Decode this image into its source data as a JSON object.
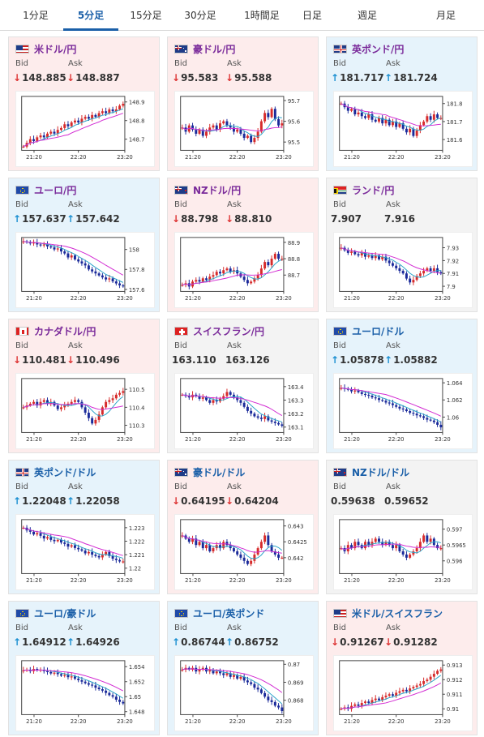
{
  "tabs": [
    {
      "label": "1分足",
      "active": false
    },
    {
      "label": "5分足",
      "active": true
    },
    {
      "label": "15分足",
      "active": false
    },
    {
      "label": "30分足",
      "active": false
    },
    {
      "label": "1時間足",
      "active": false
    },
    {
      "label": "日足",
      "active": false
    },
    {
      "label": "週足",
      "active": false
    },
    {
      "label": "月足",
      "active": false
    }
  ],
  "labels": {
    "bid": "Bid",
    "ask": "Ask"
  },
  "x_ticks": [
    "21:20",
    "22:20",
    "23:20"
  ],
  "cards": [
    {
      "pair": "米ドル/円",
      "flag": "us-flag-icon",
      "trend": "down",
      "bid": "148.885",
      "ask": "148.887",
      "yticks": [
        "148.9",
        "148.8",
        "148.7"
      ],
      "ylim": [
        148.64,
        148.93
      ],
      "series": [
        148.66,
        148.68,
        148.7,
        148.69,
        148.71,
        148.72,
        148.71,
        148.73,
        148.74,
        148.73,
        148.75,
        148.76,
        148.78,
        148.77,
        148.79,
        148.8,
        148.79,
        148.81,
        148.82,
        148.81,
        148.83,
        148.82,
        148.84,
        148.85,
        148.84,
        148.86,
        148.85,
        148.86,
        148.88,
        148.89
      ]
    },
    {
      "pair": "豪ドル/円",
      "flag": "au-flag-icon",
      "trend": "down",
      "bid": "95.583",
      "ask": "95.588",
      "yticks": [
        "95.7",
        "95.6",
        "95.5"
      ],
      "ylim": [
        95.46,
        95.72
      ],
      "series": [
        95.57,
        95.55,
        95.58,
        95.56,
        95.54,
        95.56,
        95.53,
        95.55,
        95.57,
        95.58,
        95.56,
        95.59,
        95.6,
        95.58,
        95.57,
        95.55,
        95.56,
        95.54,
        95.52,
        95.53,
        95.5,
        95.52,
        95.55,
        95.6,
        95.64,
        95.62,
        95.66,
        95.61,
        95.58,
        95.59
      ]
    },
    {
      "pair": "英ポンド/円",
      "flag": "uk-flag-icon",
      "trend": "up",
      "bid": "181.717",
      "ask": "181.724",
      "yticks": [
        "181.8",
        "181.7",
        "181.6"
      ],
      "ylim": [
        181.54,
        181.84
      ],
      "series": [
        181.8,
        181.78,
        181.76,
        181.77,
        181.74,
        181.75,
        181.73,
        181.72,
        181.74,
        181.71,
        181.7,
        181.72,
        181.69,
        181.71,
        181.68,
        181.7,
        181.67,
        181.69,
        181.66,
        181.64,
        181.66,
        181.62,
        181.65,
        181.68,
        181.7,
        181.73,
        181.71,
        181.74,
        181.72,
        181.72
      ]
    },
    {
      "pair": "ユーロ/円",
      "flag": "eu-flag-icon",
      "trend": "up",
      "bid": "157.637",
      "ask": "157.642",
      "yticks": [
        "158",
        "157.8",
        "157.6"
      ],
      "ylim": [
        157.58,
        158.12
      ],
      "series": [
        158.08,
        158.07,
        158.06,
        158.07,
        158.05,
        158.04,
        158.05,
        158.03,
        158.02,
        158.0,
        158.01,
        157.98,
        157.96,
        157.92,
        157.94,
        157.9,
        157.88,
        157.86,
        157.84,
        157.8,
        157.78,
        157.76,
        157.74,
        157.72,
        157.7,
        157.71,
        157.68,
        157.66,
        157.64,
        157.63
      ]
    },
    {
      "pair": "NZドル/円",
      "flag": "nz-flag-icon",
      "trend": "down",
      "bid": "88.798",
      "ask": "88.810",
      "yticks": [
        "88.9",
        "88.8",
        "88.7"
      ],
      "ylim": [
        88.6,
        88.93
      ],
      "series": [
        88.64,
        88.65,
        88.63,
        88.66,
        88.67,
        88.66,
        88.68,
        88.67,
        88.69,
        88.7,
        88.72,
        88.71,
        88.73,
        88.74,
        88.72,
        88.73,
        88.71,
        88.69,
        88.67,
        88.65,
        88.66,
        88.68,
        88.7,
        88.74,
        88.78,
        88.76,
        88.8,
        88.83,
        88.8,
        88.8
      ]
    },
    {
      "pair": "ランド/円",
      "flag": "za-flag-icon",
      "trend": "flat",
      "bid": "7.907",
      "ask": "7.916",
      "yticks": [
        "7.93",
        "7.92",
        "7.91",
        "7.9"
      ],
      "ylim": [
        7.896,
        7.938
      ],
      "series": [
        7.93,
        7.928,
        7.926,
        7.927,
        7.925,
        7.924,
        7.926,
        7.923,
        7.924,
        7.922,
        7.924,
        7.921,
        7.923,
        7.92,
        7.918,
        7.916,
        7.914,
        7.912,
        7.91,
        7.906,
        7.903,
        7.905,
        7.908,
        7.91,
        7.912,
        7.914,
        7.912,
        7.914,
        7.911,
        7.91
      ]
    },
    {
      "pair": "カナダドル/円",
      "flag": "ca-flag-icon",
      "trend": "down",
      "bid": "110.481",
      "ask": "110.496",
      "yticks": [
        "110.5",
        "110.4",
        "110.3"
      ],
      "ylim": [
        110.26,
        110.56
      ],
      "series": [
        110.4,
        110.41,
        110.42,
        110.43,
        110.41,
        110.43,
        110.44,
        110.42,
        110.43,
        110.41,
        110.39,
        110.4,
        110.41,
        110.42,
        110.43,
        110.44,
        110.43,
        110.4,
        110.37,
        110.34,
        110.31,
        110.33,
        110.36,
        110.4,
        110.43,
        110.44,
        110.45,
        110.47,
        110.48,
        110.49
      ]
    },
    {
      "pair": "スイスフラン/円",
      "flag": "ch-flag-icon",
      "trend": "flat",
      "bid": "163.110",
      "ask": "163.126",
      "yticks": [
        "163.4",
        "163.3",
        "163.2",
        "163.1"
      ],
      "ylim": [
        163.06,
        163.46
      ],
      "series": [
        163.34,
        163.33,
        163.32,
        163.34,
        163.33,
        163.31,
        163.32,
        163.3,
        163.28,
        163.3,
        163.29,
        163.31,
        163.33,
        163.36,
        163.34,
        163.32,
        163.3,
        163.28,
        163.25,
        163.22,
        163.2,
        163.18,
        163.17,
        163.16,
        163.18,
        163.15,
        163.14,
        163.13,
        163.12,
        163.11
      ]
    },
    {
      "pair": "ユーロ/ドル",
      "flag": "eu-flag-icon",
      "trend": "up",
      "bid": "1.05878",
      "ask": "1.05882",
      "yticks": [
        "1.064",
        "1.062",
        "1.06"
      ],
      "ylim": [
        1.0582,
        1.0645
      ],
      "series": [
        1.0634,
        1.0633,
        1.0632,
        1.063,
        1.0631,
        1.0629,
        1.0627,
        1.0626,
        1.0625,
        1.0623,
        1.0622,
        1.062,
        1.0619,
        1.0617,
        1.0616,
        1.0614,
        1.0612,
        1.061,
        1.0609,
        1.0607,
        1.0605,
        1.0604,
        1.0602,
        1.0601,
        1.0599,
        1.0597,
        1.0596,
        1.0594,
        1.0591,
        1.0588
      ]
    },
    {
      "pair": "英ポンド/ドル",
      "flag": "uk-flag-icon",
      "trend": "up",
      "bid": "1.22048",
      "ask": "1.22058",
      "yticks": [
        "1.223",
        "1.222",
        "1.221",
        "1.22"
      ],
      "ylim": [
        1.2196,
        1.2236
      ],
      "series": [
        1.223,
        1.2228,
        1.2227,
        1.2225,
        1.2226,
        1.2224,
        1.2222,
        1.2223,
        1.2221,
        1.222,
        1.2221,
        1.2219,
        1.2218,
        1.2216,
        1.2217,
        1.2215,
        1.2214,
        1.2213,
        1.2211,
        1.2212,
        1.221,
        1.2209,
        1.2208,
        1.221,
        1.2212,
        1.2209,
        1.2207,
        1.2206,
        1.2205,
        1.2205
      ]
    },
    {
      "pair": "豪ドル/ドル",
      "flag": "au-flag-icon",
      "trend": "down",
      "bid": "0.64195",
      "ask": "0.64204",
      "yticks": [
        "0.643",
        "0.6425",
        "0.642"
      ],
      "ylim": [
        0.6415,
        0.6432
      ],
      "series": [
        0.6427,
        0.6426,
        0.6425,
        0.6426,
        0.6424,
        0.6425,
        0.6423,
        0.6424,
        0.6422,
        0.6423,
        0.6424,
        0.6423,
        0.6425,
        0.6424,
        0.6423,
        0.6422,
        0.6421,
        0.642,
        0.6419,
        0.6418,
        0.6419,
        0.6421,
        0.6423,
        0.6425,
        0.6427,
        0.6424,
        0.6422,
        0.6421,
        0.642,
        0.642
      ]
    },
    {
      "pair": "NZドル/ドル",
      "flag": "nz-flag-icon",
      "trend": "flat",
      "bid": "0.59638",
      "ask": "0.59652",
      "yticks": [
        "0.597",
        "0.5965",
        "0.596"
      ],
      "ylim": [
        0.5956,
        0.5973
      ],
      "series": [
        0.5964,
        0.5963,
        0.5965,
        0.5964,
        0.5966,
        0.5965,
        0.5964,
        0.5966,
        0.5965,
        0.5966,
        0.5967,
        0.5966,
        0.5965,
        0.5966,
        0.5965,
        0.5964,
        0.5965,
        0.5963,
        0.5962,
        0.5961,
        0.5962,
        0.5963,
        0.5964,
        0.5966,
        0.5968,
        0.5966,
        0.5967,
        0.5965,
        0.5964,
        0.5964
      ]
    },
    {
      "pair": "ユーロ/豪ドル",
      "flag": "eu-flag-icon",
      "trend": "up",
      "bid": "1.64912",
      "ask": "1.64926",
      "yticks": [
        "1.654",
        "1.652",
        "1.65",
        "1.648"
      ],
      "ylim": [
        1.6476,
        1.6548
      ],
      "series": [
        1.6535,
        1.6536,
        1.6534,
        1.6537,
        1.6535,
        1.6536,
        1.6534,
        1.6533,
        1.6531,
        1.6532,
        1.653,
        1.6528,
        1.6529,
        1.6526,
        1.6527,
        1.6524,
        1.6522,
        1.652,
        1.6518,
        1.6516,
        1.6515,
        1.6512,
        1.651,
        1.6508,
        1.6505,
        1.6502,
        1.65,
        1.6496,
        1.6493,
        1.6491
      ]
    },
    {
      "pair": "ユーロ/英ポンド",
      "flag": "eu-flag-icon",
      "trend": "up",
      "bid": "0.86744",
      "ask": "0.86752",
      "yticks": [
        "0.87",
        "0.869",
        "0.868"
      ],
      "ylim": [
        0.8672,
        0.8702
      ],
      "series": [
        0.8697,
        0.8698,
        0.8697,
        0.8698,
        0.8696,
        0.8697,
        0.8698,
        0.8696,
        0.8697,
        0.8695,
        0.8696,
        0.8695,
        0.8694,
        0.8695,
        0.8693,
        0.8694,
        0.8692,
        0.8693,
        0.8691,
        0.869,
        0.8689,
        0.8687,
        0.8686,
        0.8684,
        0.8682,
        0.868,
        0.8679,
        0.8677,
        0.8676,
        0.8674
      ]
    },
    {
      "pair": "米ドル/スイスフラン",
      "flag": "us-flag-icon",
      "trend": "down",
      "bid": "0.91267",
      "ask": "0.91282",
      "yticks": [
        "0.913",
        "0.912",
        "0.911",
        "0.91"
      ],
      "ylim": [
        0.9096,
        0.9133
      ],
      "series": [
        0.91,
        0.9101,
        0.91,
        0.9102,
        0.9103,
        0.9102,
        0.9104,
        0.9105,
        0.9104,
        0.9106,
        0.9107,
        0.9106,
        0.9108,
        0.9109,
        0.911,
        0.9109,
        0.9111,
        0.9112,
        0.9113,
        0.9112,
        0.9114,
        0.9115,
        0.9116,
        0.9117,
        0.9119,
        0.912,
        0.9122,
        0.9124,
        0.9126,
        0.9127
      ]
    }
  ]
}
